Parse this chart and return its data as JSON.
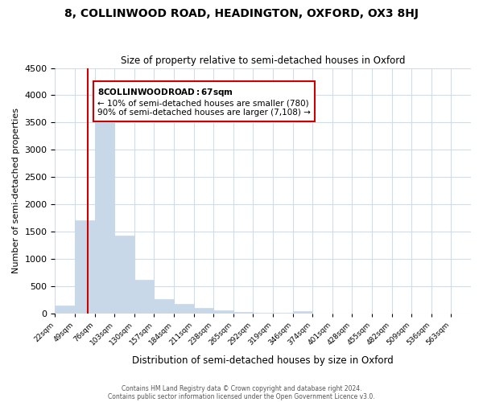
{
  "title": "8, COLLINWOOD ROAD, HEADINGTON, OXFORD, OX3 8HJ",
  "subtitle": "Size of property relative to semi-detached houses in Oxford",
  "xlabel": "Distribution of semi-detached houses by size in Oxford",
  "ylabel": "Number of semi-detached properties",
  "bar_labels": [
    "22sqm",
    "49sqm",
    "76sqm",
    "103sqm",
    "130sqm",
    "157sqm",
    "184sqm",
    "211sqm",
    "238sqm",
    "265sqm",
    "292sqm",
    "319sqm",
    "346sqm",
    "374sqm",
    "401sqm",
    "428sqm",
    "455sqm",
    "482sqm",
    "509sqm",
    "536sqm",
    "563sqm"
  ],
  "bar_values": [
    150,
    1700,
    3500,
    1430,
    620,
    260,
    175,
    100,
    50,
    30,
    10,
    5,
    40,
    0,
    0,
    0,
    0,
    0,
    0,
    0,
    0
  ],
  "bar_color": "#c8d8e8",
  "bar_edge_color": "#c8d8e8",
  "property_line_x": 67,
  "xlim_left": 22,
  "ylim": [
    0,
    4500
  ],
  "annotation_title": "8 COLLINWOOD ROAD: 67sqm",
  "annotation_line1": "← 10% of semi-detached houses are smaller (780)",
  "annotation_line2": "90% of semi-detached houses are larger (7,108) →",
  "annotation_box_color": "#ffffff",
  "annotation_box_edge": "#cc0000",
  "property_line_color": "#cc0000",
  "footer1": "Contains HM Land Registry data © Crown copyright and database right 2024.",
  "footer2": "Contains public sector information licensed under the Open Government Licence v3.0.",
  "bin_width": 27,
  "background_color": "#ffffff",
  "grid_color": "#d0dce8"
}
